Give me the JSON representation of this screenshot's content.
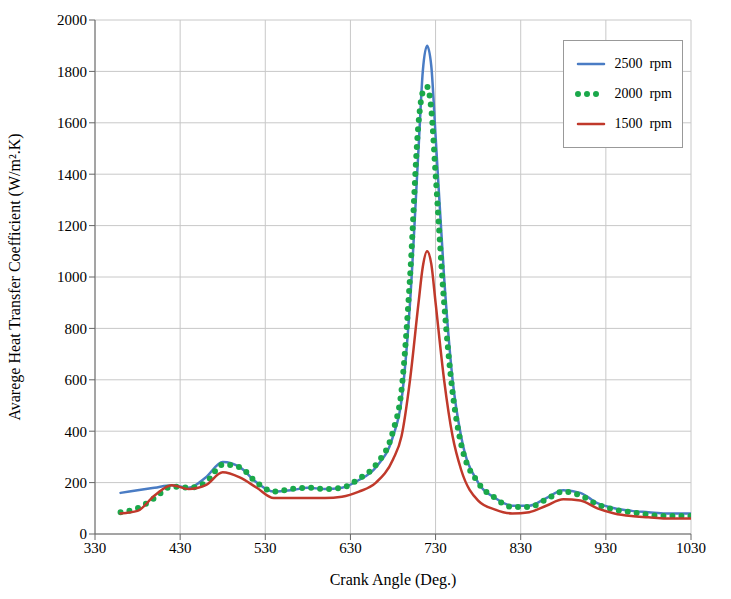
{
  "chart_data": {
    "type": "line",
    "x_label": "Crank Angle (Deg.)",
    "y_label": "Avarege Heat Transfer Coefficient (W/m².K)",
    "x": [
      360,
      380,
      400,
      420,
      440,
      460,
      480,
      500,
      520,
      540,
      560,
      580,
      600,
      620,
      640,
      660,
      680,
      690,
      700,
      710,
      715,
      720,
      725,
      730,
      740,
      750,
      760,
      780,
      800,
      820,
      840,
      860,
      880,
      900,
      920,
      940,
      960,
      980,
      1000,
      1020,
      1030
    ],
    "series": [
      {
        "name": "2500  rpm",
        "color": "#4a7cc4",
        "line_style": "solid",
        "values": [
          160,
          170,
          180,
          190,
          180,
          220,
          280,
          260,
          200,
          165,
          170,
          180,
          175,
          180,
          210,
          260,
          380,
          520,
          900,
          1500,
          1800,
          1900,
          1820,
          1550,
          1000,
          600,
          380,
          200,
          140,
          110,
          110,
          140,
          170,
          160,
          120,
          100,
          90,
          85,
          80,
          80,
          80
        ]
      },
      {
        "name": "2000  rpm",
        "color": "#1aa84a",
        "line_style": "dotted",
        "values": [
          85,
          100,
          140,
          185,
          180,
          200,
          270,
          260,
          200,
          165,
          175,
          180,
          175,
          180,
          215,
          270,
          400,
          560,
          1000,
          1600,
          1720,
          1740,
          1650,
          1400,
          900,
          550,
          350,
          200,
          140,
          105,
          105,
          135,
          165,
          150,
          115,
          95,
          85,
          75,
          70,
          70,
          70
        ]
      },
      {
        "name": "1500  rpm",
        "color": "#c0392b",
        "line_style": "solid",
        "values": [
          80,
          90,
          150,
          190,
          175,
          190,
          240,
          220,
          180,
          140,
          140,
          140,
          140,
          145,
          165,
          200,
          290,
          380,
          600,
          900,
          1040,
          1100,
          1050,
          900,
          600,
          380,
          250,
          130,
          95,
          80,
          85,
          110,
          135,
          130,
          100,
          80,
          70,
          65,
          60,
          60,
          60
        ]
      }
    ],
    "xlim": [
      330,
      1030
    ],
    "xticks": [
      330,
      430,
      530,
      630,
      730,
      830,
      930,
      1030
    ],
    "ylim": [
      0,
      2000
    ],
    "yticks": [
      0,
      200,
      400,
      600,
      800,
      1000,
      1200,
      1400,
      1600,
      1800,
      2000
    ],
    "grid": true,
    "legend": "top-right"
  }
}
